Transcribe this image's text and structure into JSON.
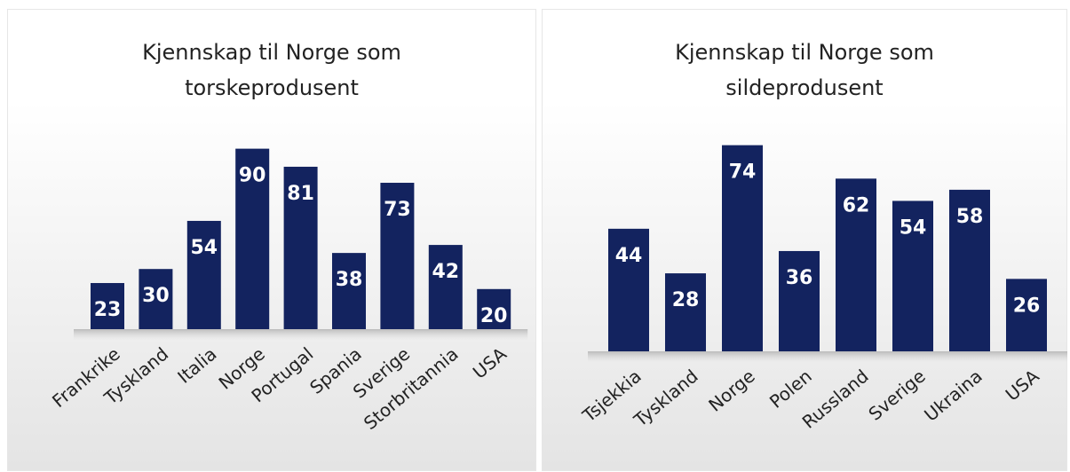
{
  "chart_data": [
    {
      "type": "bar",
      "title": "Kjennskap til Norge som torskeprodusent",
      "categories": [
        "Frankrike",
        "Tyskland",
        "Italia",
        "Norge",
        "Portugal",
        "Spania",
        "Sverige",
        "Storbritannia",
        "USA"
      ],
      "values": [
        23,
        30,
        54,
        90,
        81,
        38,
        73,
        42,
        20
      ],
      "color": "#13235f"
    },
    {
      "type": "bar",
      "title": "Kjennskap til Norge som sildeprodusent",
      "categories": [
        "Tsjekkia",
        "Tyskland",
        "Norge",
        "Polen",
        "Russland",
        "Sverige",
        "Ukraina",
        "USA"
      ],
      "values": [
        44,
        28,
        74,
        36,
        62,
        54,
        58,
        26
      ],
      "color": "#13235f"
    }
  ]
}
